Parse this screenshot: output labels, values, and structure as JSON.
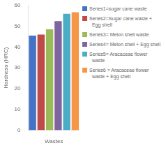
{
  "chart_data": {
    "type": "bar",
    "categories": [
      "Series1=sugar cane waste",
      "Series2=Sugar cane waste +\n  Egg shell",
      "Series3= Melon shell waste",
      "Series4= Melon shell + Egg shell",
      "Series5= Aracaceae flower\n  waste",
      "Series6 = Aracaceae flower\n  waste + Egg shell"
    ],
    "values": [
      45.5,
      46.0,
      48.5,
      52.5,
      56.0,
      56.7
    ],
    "colors": [
      "#4472C4",
      "#BE4B48",
      "#9BBB59",
      "#8064A2",
      "#4BACC6",
      "#F79646"
    ],
    "xlabel": "Wastes",
    "ylabel": "Hardness (HRC)",
    "ylim": [
      0,
      60
    ],
    "yticks": [
      0,
      10,
      20,
      30,
      40,
      50,
      60
    ],
    "grid": false,
    "legend": "right",
    "tick_labels": "y"
  }
}
